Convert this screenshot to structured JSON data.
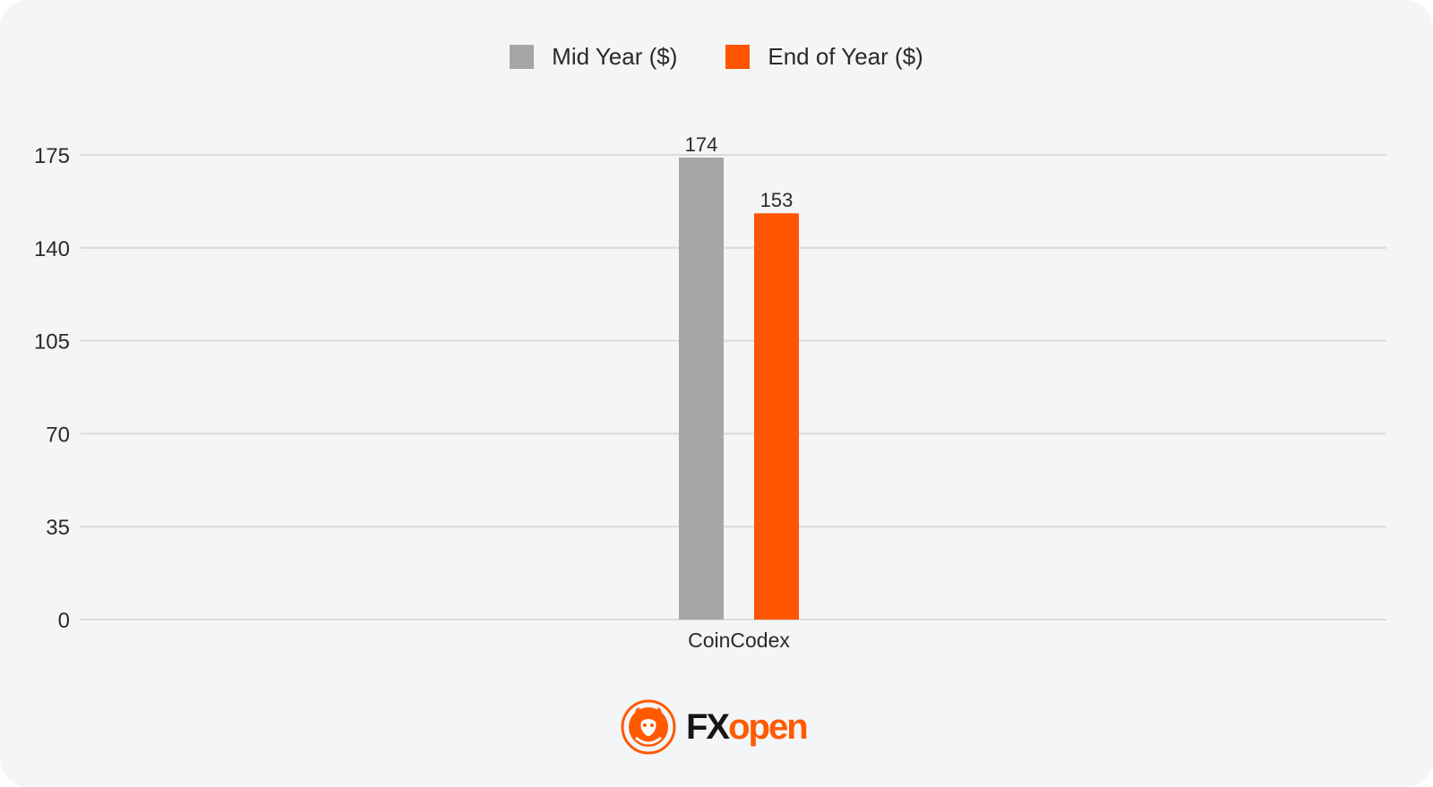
{
  "colors": {
    "background": "#f4f5f7",
    "mid_year": "#a6a6a6",
    "end_of_year": "#ff5500",
    "grid": "#d9dadd",
    "brand_orange": "#ff5a00"
  },
  "legend": {
    "items": [
      {
        "label": "Mid Year ($)",
        "color": "#a6a6a6"
      },
      {
        "label": "End of Year ($)",
        "color": "#ff5500"
      }
    ]
  },
  "brand": {
    "logo_icon": "bull-logo-icon",
    "name_part1": "FX",
    "name_part2": "open"
  },
  "chart_data": {
    "type": "bar",
    "title": "",
    "xlabel": "",
    "ylabel": "",
    "categories": [
      "CoinCodex"
    ],
    "series": [
      {
        "name": "Mid Year ($)",
        "values": [
          174
        ],
        "color": "#a6a6a6"
      },
      {
        "name": "End of Year ($)",
        "values": [
          153
        ],
        "color": "#ff5500"
      }
    ],
    "yticks": [
      0,
      35,
      70,
      105,
      140,
      175
    ],
    "ylim": [
      0,
      175
    ],
    "grid": true,
    "legend_position": "top-center",
    "data_labels": true
  }
}
